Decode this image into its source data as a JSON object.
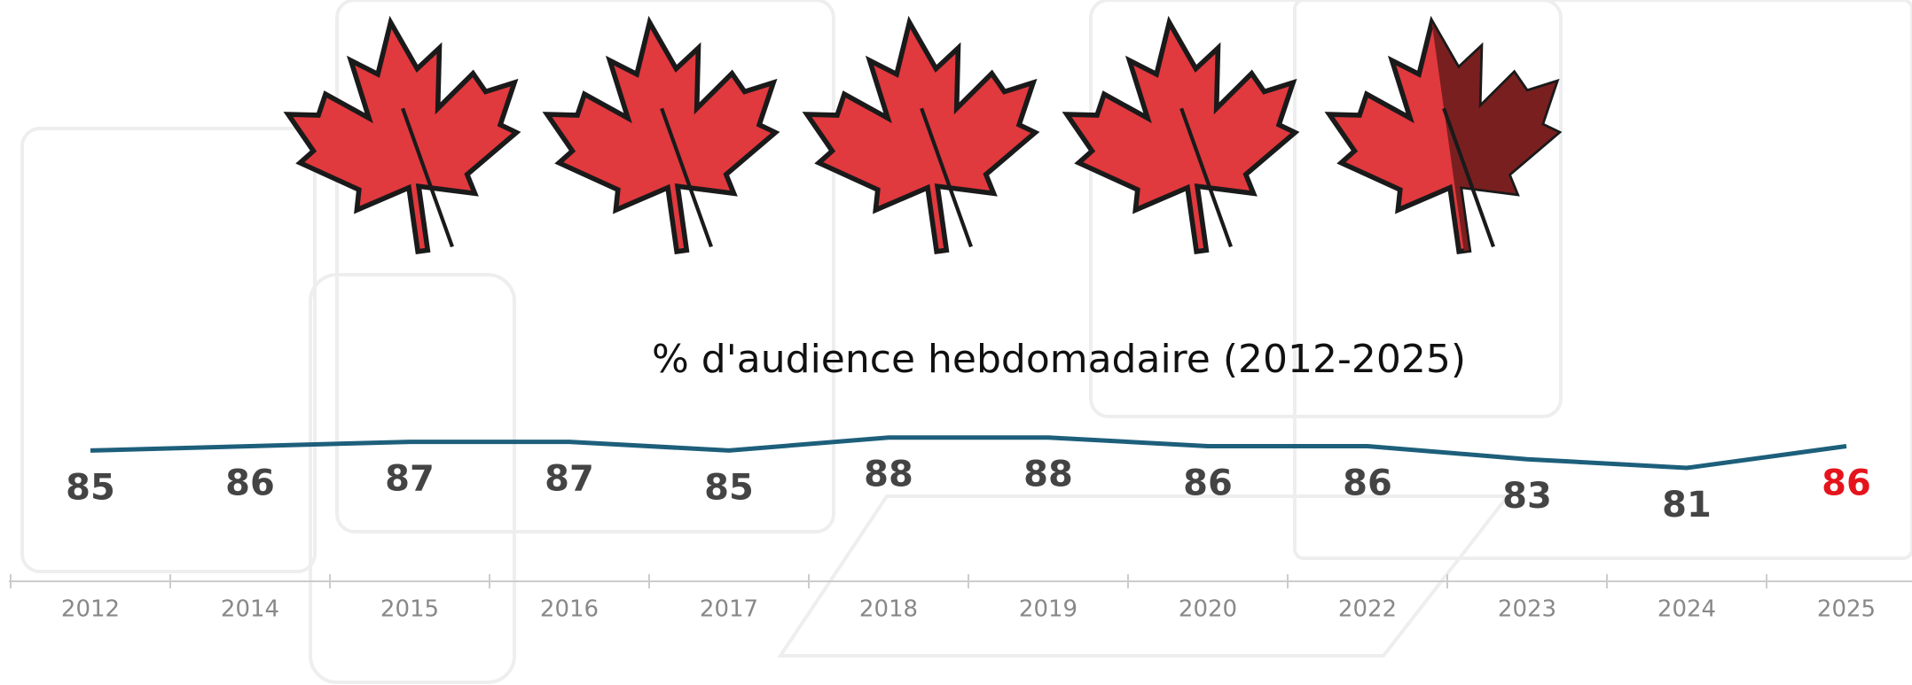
{
  "chart_data": {
    "type": "line",
    "title": "% d'audience hebdomadaire (2012-2025)",
    "categories": [
      "2012",
      "2014",
      "2015",
      "2016",
      "2017",
      "2018",
      "2019",
      "2020",
      "2022",
      "2023",
      "2024",
      "2025"
    ],
    "values": [
      85,
      86,
      87,
      87,
      85,
      88,
      88,
      86,
      86,
      83,
      81,
      86
    ],
    "color": "#1d5f7b",
    "label_colors": [
      "#444444",
      "#444444",
      "#444444",
      "#444444",
      "#444444",
      "#444444",
      "#444444",
      "#444444",
      "#444444",
      "#444444",
      "#444444",
      "#e5141c"
    ]
  }
}
